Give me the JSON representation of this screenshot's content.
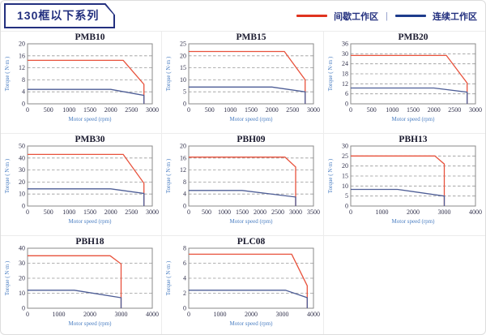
{
  "header": {
    "title": "130框以下系列",
    "legend": {
      "items": [
        {
          "name": "intermittent-work-zone",
          "label": "间歇工作区",
          "color": "#e0331f"
        },
        {
          "name": "continuous-work-zone",
          "label": "连续工作区",
          "color": "#1e3c8c"
        }
      ],
      "separator": "|"
    }
  },
  "chart_style": {
    "red_line": "#e8523c",
    "blue_line": "#4d5d96",
    "grid_color": "#999999",
    "frame_color": "#8a8a8a",
    "tick_color": "#33334d",
    "title_color": "#1a1a2e",
    "axis_label_color": "#4a7ec2"
  },
  "chart_data": [
    {
      "type": "line",
      "title": "PMB10",
      "xlabel": "Motor speed (rpm)",
      "ylabel": "Torque ( N·m )",
      "xlim": [
        0,
        3000
      ],
      "ylim": [
        0,
        20
      ],
      "xticks": [
        0,
        500,
        1000,
        1500,
        2000,
        2500,
        3000
      ],
      "yticks": [
        0,
        4,
        8,
        12,
        16,
        20
      ],
      "series": [
        {
          "name": "间歇工作区",
          "color": "#e8523c",
          "points": [
            [
              0,
              14.5
            ],
            [
              2300,
              14.5
            ],
            [
              2800,
              6.5
            ],
            [
              2800,
              0
            ]
          ]
        },
        {
          "name": "连续工作区",
          "color": "#4d5d96",
          "points": [
            [
              0,
              4.8
            ],
            [
              2000,
              4.8
            ],
            [
              2800,
              2.8
            ],
            [
              2800,
              0
            ]
          ]
        }
      ]
    },
    {
      "type": "line",
      "title": "PMB15",
      "xlabel": "Motor speed (rpm)",
      "ylabel": "Torque ( N·m )",
      "xlim": [
        0,
        3000
      ],
      "ylim": [
        0,
        25
      ],
      "xticks": [
        0,
        500,
        1000,
        1500,
        2000,
        2500,
        3000
      ],
      "yticks": [
        0,
        5,
        10,
        15,
        20,
        25
      ],
      "series": [
        {
          "name": "间歇工作区",
          "color": "#e8523c",
          "points": [
            [
              0,
              21.8
            ],
            [
              2300,
              21.8
            ],
            [
              2800,
              10
            ],
            [
              2800,
              0
            ]
          ]
        },
        {
          "name": "连续工作区",
          "color": "#4d5d96",
          "points": [
            [
              0,
              7
            ],
            [
              2000,
              7
            ],
            [
              2800,
              5
            ],
            [
              2800,
              0
            ]
          ]
        }
      ]
    },
    {
      "type": "line",
      "title": "PMB20",
      "xlabel": "Motor speed (rpm)",
      "ylabel": "Torque ( N·m )",
      "xlim": [
        0,
        3000
      ],
      "ylim": [
        0,
        36
      ],
      "xticks": [
        0,
        500,
        1000,
        1500,
        2000,
        2500,
        3000
      ],
      "yticks": [
        0,
        6,
        12,
        18,
        24,
        30,
        36
      ],
      "series": [
        {
          "name": "间歇工作区",
          "color": "#e8523c",
          "points": [
            [
              0,
              29
            ],
            [
              2300,
              29
            ],
            [
              2800,
              12.5
            ],
            [
              2800,
              0
            ]
          ]
        },
        {
          "name": "连续工作区",
          "color": "#4d5d96",
          "points": [
            [
              0,
              9.5
            ],
            [
              2000,
              9.5
            ],
            [
              2800,
              7
            ],
            [
              2800,
              0
            ]
          ]
        }
      ]
    },
    {
      "type": "line",
      "title": "PMB30",
      "xlabel": "Motor speed (rpm)",
      "ylabel": "Torque ( N·m )",
      "xlim": [
        0,
        3000
      ],
      "ylim": [
        0,
        50
      ],
      "xticks": [
        0,
        500,
        1000,
        1500,
        2000,
        2500,
        3000
      ],
      "yticks": [
        0,
        10,
        20,
        30,
        40,
        50
      ],
      "series": [
        {
          "name": "间歇工作区",
          "color": "#e8523c",
          "points": [
            [
              0,
              43
            ],
            [
              2300,
              43
            ],
            [
              2800,
              19
            ],
            [
              2800,
              0
            ]
          ]
        },
        {
          "name": "连续工作区",
          "color": "#4d5d96",
          "points": [
            [
              0,
              14.3
            ],
            [
              2000,
              14.3
            ],
            [
              2800,
              10.5
            ],
            [
              2800,
              0
            ]
          ]
        }
      ]
    },
    {
      "type": "line",
      "title": "PBH09",
      "xlabel": "Motor speed (rpm)",
      "ylabel": "Torque ( N·m )",
      "xlim": [
        0,
        3500
      ],
      "ylim": [
        0,
        20
      ],
      "xticks": [
        0,
        500,
        1000,
        1500,
        2000,
        2500,
        3000,
        3500
      ],
      "yticks": [
        0,
        4,
        8,
        12,
        16,
        20
      ],
      "series": [
        {
          "name": "间歇工作区",
          "color": "#e8523c",
          "points": [
            [
              0,
              16.3
            ],
            [
              2700,
              16.3
            ],
            [
              3000,
              13
            ],
            [
              3000,
              0
            ]
          ]
        },
        {
          "name": "连续工作区",
          "color": "#4d5d96",
          "points": [
            [
              0,
              5.2
            ],
            [
              1500,
              5.2
            ],
            [
              3000,
              3
            ],
            [
              3000,
              0
            ]
          ]
        }
      ]
    },
    {
      "type": "line",
      "title": "PBH13",
      "xlabel": "Motor speed (rpm)",
      "ylabel": "Torque ( N·m )",
      "xlim": [
        0,
        4000
      ],
      "ylim": [
        0,
        30
      ],
      "xticks": [
        0,
        1000,
        2000,
        3000,
        4000
      ],
      "yticks": [
        0,
        5,
        10,
        15,
        20,
        25,
        30
      ],
      "series": [
        {
          "name": "间歇工作区",
          "color": "#e8523c",
          "points": [
            [
              0,
              25
            ],
            [
              2700,
              25
            ],
            [
              3000,
              21
            ],
            [
              3000,
              0
            ]
          ]
        },
        {
          "name": "连续工作区",
          "color": "#4d5d96",
          "points": [
            [
              0,
              8.3
            ],
            [
              1500,
              8.3
            ],
            [
              3000,
              5
            ],
            [
              3000,
              0
            ]
          ]
        }
      ]
    },
    {
      "type": "line",
      "title": "PBH18",
      "xlabel": "Motor speed (rpm)",
      "ylabel": "Torque ( N·m )",
      "xlim": [
        0,
        4000
      ],
      "ylim": [
        0,
        40
      ],
      "xticks": [
        0,
        1000,
        2000,
        3000,
        4000
      ],
      "yticks": [
        0,
        10,
        20,
        30,
        40
      ],
      "series": [
        {
          "name": "间歇工作区",
          "color": "#e8523c",
          "points": [
            [
              0,
              35
            ],
            [
              2650,
              35
            ],
            [
              3000,
              29.5
            ],
            [
              3000,
              0
            ]
          ]
        },
        {
          "name": "连续工作区",
          "color": "#4d5d96",
          "points": [
            [
              0,
              12
            ],
            [
              1500,
              12
            ],
            [
              3000,
              7
            ],
            [
              3000,
              0
            ]
          ]
        }
      ]
    },
    {
      "type": "line",
      "title": "PLC08",
      "xlabel": "Motor speed (rpm)",
      "ylabel": "Torque ( N·m )",
      "xlim": [
        0,
        4000
      ],
      "ylim": [
        0,
        8
      ],
      "xticks": [
        0,
        1000,
        2000,
        3000,
        4000
      ],
      "yticks": [
        0,
        2,
        4,
        6,
        8
      ],
      "series": [
        {
          "name": "间歇工作区",
          "color": "#e8523c",
          "points": [
            [
              0,
              7.2
            ],
            [
              3300,
              7.2
            ],
            [
              3800,
              3
            ],
            [
              3800,
              0
            ]
          ]
        },
        {
          "name": "连续工作区",
          "color": "#4d5d96",
          "points": [
            [
              0,
              2.4
            ],
            [
              3100,
              2.4
            ],
            [
              3800,
              1.4
            ],
            [
              3800,
              0
            ]
          ]
        }
      ]
    }
  ]
}
